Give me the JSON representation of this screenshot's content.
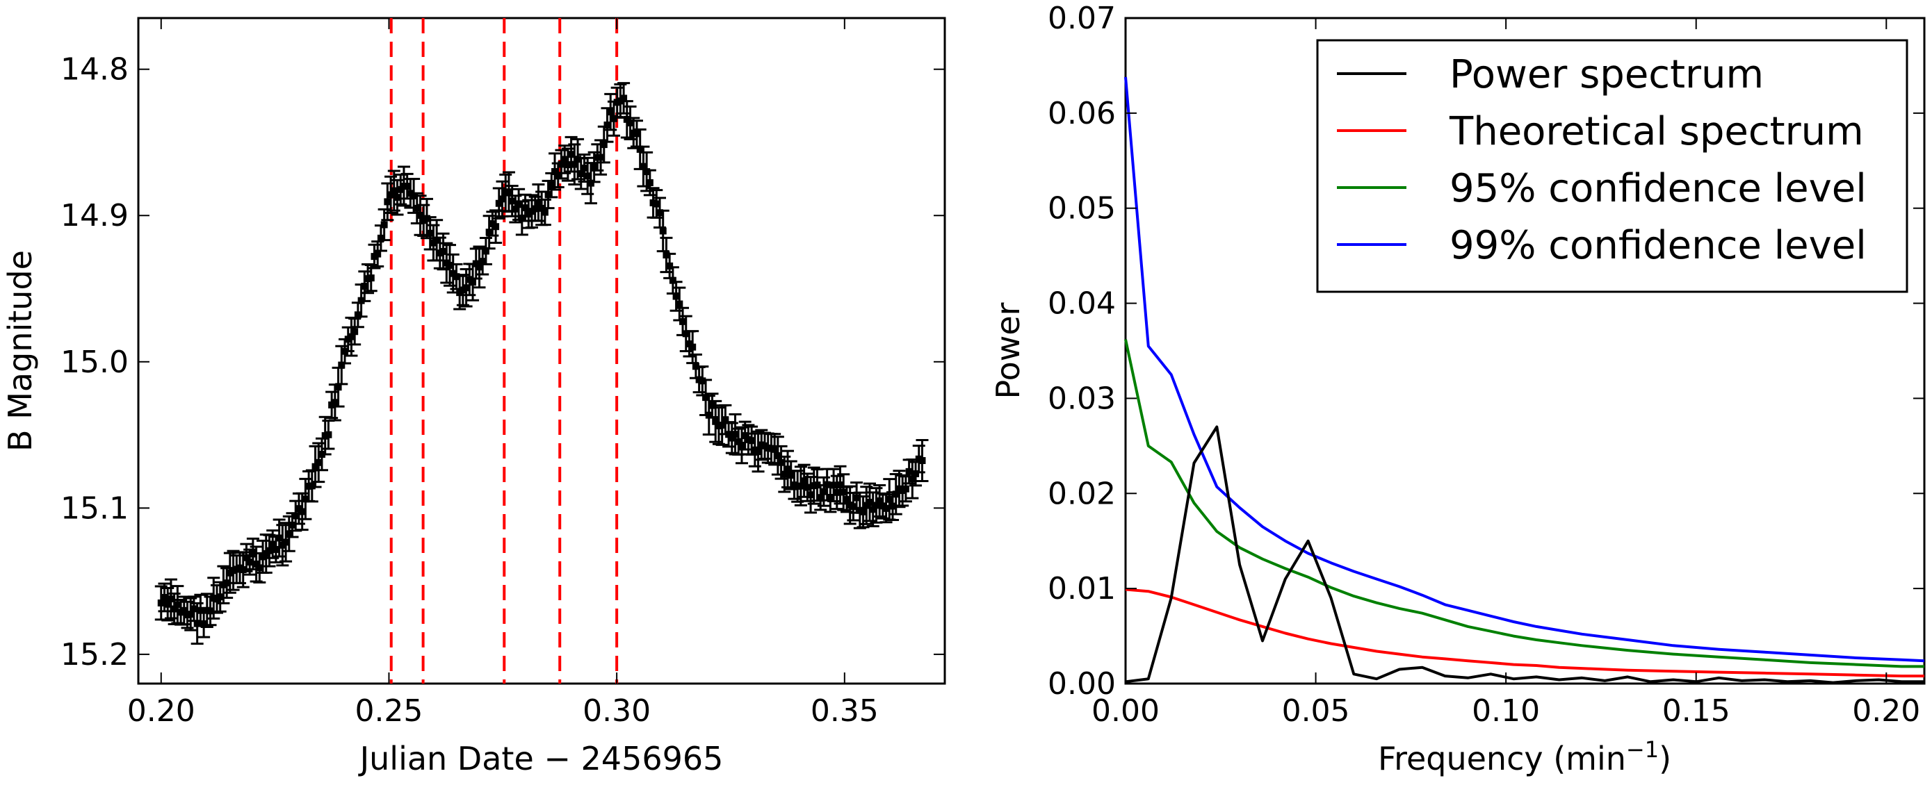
{
  "chart_data": [
    {
      "type": "scatter",
      "title": "",
      "xlabel": "Julian Date − 2456965",
      "ylabel": "B Magnitude",
      "xlim": [
        0.195,
        0.372
      ],
      "ylim": [
        15.22,
        14.765
      ],
      "y_inverted": true,
      "xticks": [
        0.2,
        0.25,
        0.3,
        0.35
      ],
      "xtick_labels": [
        "0.20",
        "0.25",
        "0.30",
        "0.35"
      ],
      "yticks": [
        14.8,
        14.9,
        15.0,
        15.1,
        15.2
      ],
      "ytick_labels": [
        "14.8",
        "14.9",
        "15.0",
        "15.1",
        "15.2"
      ],
      "vertical_lines": [
        0.2505,
        0.2575,
        0.2753,
        0.2875,
        0.3
      ],
      "vline_color": "#ff0000",
      "marker_color": "#000000",
      "anchors": [
        [
          0.2,
          15.165
        ],
        [
          0.205,
          15.17
        ],
        [
          0.209,
          15.175
        ],
        [
          0.213,
          15.16
        ],
        [
          0.217,
          15.14
        ],
        [
          0.222,
          15.135
        ],
        [
          0.227,
          15.12
        ],
        [
          0.232,
          15.095
        ],
        [
          0.236,
          15.055
        ],
        [
          0.24,
          15.0
        ],
        [
          0.244,
          14.96
        ],
        [
          0.248,
          14.92
        ],
        [
          0.2505,
          14.885
        ],
        [
          0.254,
          14.885
        ],
        [
          0.258,
          14.905
        ],
        [
          0.262,
          14.925
        ],
        [
          0.266,
          14.95
        ],
        [
          0.27,
          14.935
        ],
        [
          0.273,
          14.905
        ],
        [
          0.276,
          14.885
        ],
        [
          0.28,
          14.9
        ],
        [
          0.284,
          14.895
        ],
        [
          0.2875,
          14.865
        ],
        [
          0.291,
          14.86
        ],
        [
          0.294,
          14.88
        ],
        [
          0.297,
          14.85
        ],
        [
          0.299,
          14.83
        ],
        [
          0.301,
          14.82
        ],
        [
          0.304,
          14.845
        ],
        [
          0.307,
          14.875
        ],
        [
          0.31,
          14.91
        ],
        [
          0.313,
          14.955
        ],
        [
          0.317,
          15.0
        ],
        [
          0.32,
          15.03
        ],
        [
          0.325,
          15.05
        ],
        [
          0.33,
          15.06
        ],
        [
          0.335,
          15.065
        ],
        [
          0.34,
          15.085
        ],
        [
          0.345,
          15.09
        ],
        [
          0.35,
          15.09
        ],
        [
          0.355,
          15.1
        ],
        [
          0.36,
          15.1
        ],
        [
          0.364,
          15.08
        ],
        [
          0.367,
          15.07
        ]
      ]
    },
    {
      "type": "line",
      "title": "",
      "xlabel": "Frequency (min",
      "xlabel_sup": "−1",
      "xlabel_close": ")",
      "ylabel": "Power",
      "xlim": [
        0,
        0.21
      ],
      "ylim": [
        0,
        0.07
      ],
      "xticks": [
        0.0,
        0.05,
        0.1,
        0.15,
        0.2
      ],
      "xtick_labels": [
        "0.00",
        "0.05",
        "0.10",
        "0.15",
        "0.20"
      ],
      "yticks": [
        0.0,
        0.01,
        0.02,
        0.03,
        0.04,
        0.05,
        0.06,
        0.07
      ],
      "ytick_labels": [
        "0.00",
        "0.01",
        "0.02",
        "0.03",
        "0.04",
        "0.05",
        "0.06",
        "0.07"
      ],
      "legend_position": "top-right",
      "series": [
        {
          "name": "Power spectrum",
          "color": "#000000",
          "points": [
            [
              0.0,
              0.0002
            ],
            [
              0.006,
              0.0005
            ],
            [
              0.012,
              0.009
            ],
            [
              0.018,
              0.0232
            ],
            [
              0.024,
              0.027
            ],
            [
              0.03,
              0.0125
            ],
            [
              0.036,
              0.0045
            ],
            [
              0.042,
              0.011
            ],
            [
              0.048,
              0.015
            ],
            [
              0.054,
              0.009
            ],
            [
              0.06,
              0.001
            ],
            [
              0.066,
              0.0005
            ],
            [
              0.072,
              0.0015
            ],
            [
              0.078,
              0.0017
            ],
            [
              0.084,
              0.0008
            ],
            [
              0.09,
              0.0006
            ],
            [
              0.096,
              0.001
            ],
            [
              0.102,
              0.0005
            ],
            [
              0.108,
              0.0007
            ],
            [
              0.114,
              0.0004
            ],
            [
              0.12,
              0.0006
            ],
            [
              0.126,
              0.0003
            ],
            [
              0.132,
              0.0007
            ],
            [
              0.138,
              0.0002
            ],
            [
              0.144,
              0.0004
            ],
            [
              0.15,
              0.0002
            ],
            [
              0.156,
              0.0006
            ],
            [
              0.162,
              0.0003
            ],
            [
              0.168,
              0.0004
            ],
            [
              0.174,
              0.0002
            ],
            [
              0.18,
              0.0003
            ],
            [
              0.186,
              0.0001
            ],
            [
              0.192,
              0.0003
            ],
            [
              0.198,
              0.0004
            ],
            [
              0.204,
              0.0002
            ],
            [
              0.21,
              0.0002
            ]
          ]
        },
        {
          "name": "Theoretical spectrum",
          "color": "#ff0000",
          "points": [
            [
              0.0,
              0.0099
            ],
            [
              0.006,
              0.0097
            ],
            [
              0.012,
              0.0091
            ],
            [
              0.018,
              0.0083
            ],
            [
              0.024,
              0.0075
            ],
            [
              0.03,
              0.0067
            ],
            [
              0.036,
              0.006
            ],
            [
              0.042,
              0.0053
            ],
            [
              0.048,
              0.0047
            ],
            [
              0.054,
              0.0042
            ],
            [
              0.06,
              0.0038
            ],
            [
              0.066,
              0.0034
            ],
            [
              0.072,
              0.0031
            ],
            [
              0.078,
              0.0028
            ],
            [
              0.084,
              0.0026
            ],
            [
              0.09,
              0.0024
            ],
            [
              0.096,
              0.0022
            ],
            [
              0.102,
              0.002
            ],
            [
              0.108,
              0.0019
            ],
            [
              0.114,
              0.0017
            ],
            [
              0.12,
              0.0016
            ],
            [
              0.132,
              0.0014
            ],
            [
              0.144,
              0.0013
            ],
            [
              0.156,
              0.0012
            ],
            [
              0.168,
              0.0011
            ],
            [
              0.18,
              0.001
            ],
            [
              0.192,
              0.0009
            ],
            [
              0.204,
              0.0008
            ],
            [
              0.21,
              0.0008
            ]
          ]
        },
        {
          "name": "95% confidence level",
          "color": "#008000",
          "points": [
            [
              0.0,
              0.0362
            ],
            [
              0.006,
              0.025
            ],
            [
              0.012,
              0.0233
            ],
            [
              0.018,
              0.019
            ],
            [
              0.024,
              0.016
            ],
            [
              0.03,
              0.0143
            ],
            [
              0.036,
              0.0131
            ],
            [
              0.042,
              0.0121
            ],
            [
              0.048,
              0.0112
            ],
            [
              0.054,
              0.0101
            ],
            [
              0.06,
              0.0092
            ],
            [
              0.066,
              0.0085
            ],
            [
              0.072,
              0.0079
            ],
            [
              0.078,
              0.0074
            ],
            [
              0.084,
              0.0067
            ],
            [
              0.09,
              0.006
            ],
            [
              0.096,
              0.0055
            ],
            [
              0.102,
              0.005
            ],
            [
              0.108,
              0.0046
            ],
            [
              0.114,
              0.0043
            ],
            [
              0.12,
              0.004
            ],
            [
              0.132,
              0.0035
            ],
            [
              0.144,
              0.0031
            ],
            [
              0.156,
              0.0028
            ],
            [
              0.168,
              0.0025
            ],
            [
              0.18,
              0.0022
            ],
            [
              0.192,
              0.002
            ],
            [
              0.204,
              0.0018
            ],
            [
              0.21,
              0.0018
            ]
          ]
        },
        {
          "name": "99% confidence level",
          "color": "#0000ff",
          "points": [
            [
              0.0,
              0.0638
            ],
            [
              0.006,
              0.0355
            ],
            [
              0.012,
              0.0325
            ],
            [
              0.018,
              0.0262
            ],
            [
              0.024,
              0.0207
            ],
            [
              0.03,
              0.0185
            ],
            [
              0.036,
              0.0165
            ],
            [
              0.042,
              0.015
            ],
            [
              0.048,
              0.0137
            ],
            [
              0.054,
              0.0127
            ],
            [
              0.06,
              0.0118
            ],
            [
              0.066,
              0.011
            ],
            [
              0.072,
              0.0102
            ],
            [
              0.078,
              0.0093
            ],
            [
              0.084,
              0.0083
            ],
            [
              0.09,
              0.0077
            ],
            [
              0.096,
              0.0071
            ],
            [
              0.102,
              0.0065
            ],
            [
              0.108,
              0.006
            ],
            [
              0.114,
              0.0056
            ],
            [
              0.12,
              0.0052
            ],
            [
              0.132,
              0.0046
            ],
            [
              0.144,
              0.004
            ],
            [
              0.156,
              0.0036
            ],
            [
              0.168,
              0.0033
            ],
            [
              0.18,
              0.003
            ],
            [
              0.192,
              0.0027
            ],
            [
              0.204,
              0.0025
            ],
            [
              0.21,
              0.0024
            ]
          ]
        }
      ]
    }
  ]
}
